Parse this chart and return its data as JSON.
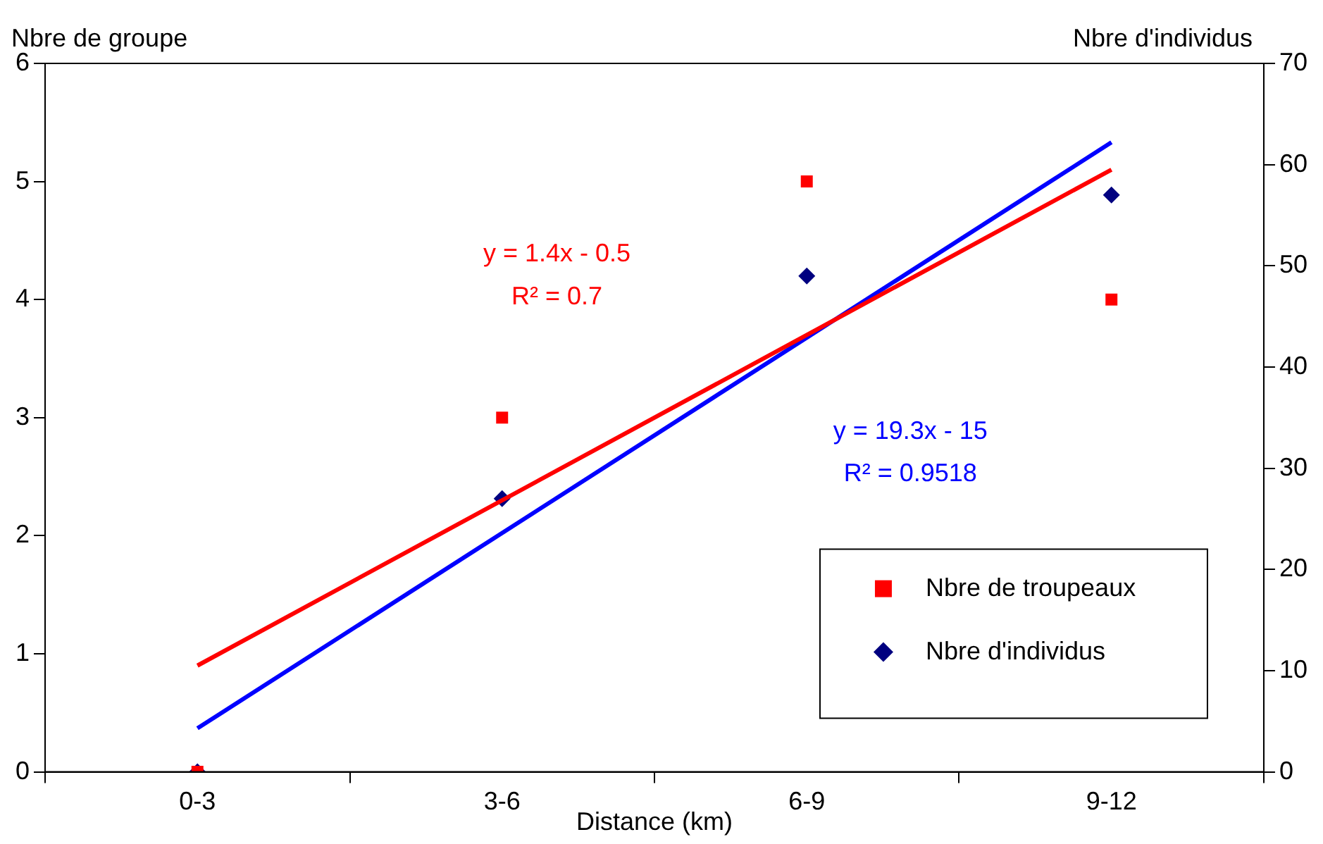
{
  "chart_data": {
    "type": "scatter",
    "xlabel": "Distance (km)",
    "ylabel": "Nbre de groupe",
    "y2label": "Nbre d'individus",
    "categories": [
      "0-3",
      "3-6",
      "6-9",
      "9-12"
    ],
    "series": [
      {
        "name": "Nbre de troupeaux",
        "marker": "square",
        "color": "#ff0000",
        "values": [
          0,
          3,
          5,
          4
        ]
      },
      {
        "name": "Nbre d'individus",
        "marker": "diamond",
        "color": "#000080",
        "axis": "y2",
        "values": [
          0,
          27,
          49,
          57
        ]
      },
      {
        "type": "line",
        "marker": "none",
        "color": "#ff0000",
        "x": [
          "0-3",
          "9-12"
        ],
        "values": [
          0.9,
          5.1
        ]
      },
      {
        "type": "line",
        "marker": "none",
        "color": "#0000ff",
        "axis": "y2",
        "x": [
          "0-3",
          "9-12"
        ],
        "values": [
          4.3,
          62.2
        ]
      }
    ],
    "ylim": [
      0,
      6
    ],
    "yticks": [
      0,
      1,
      2,
      3,
      4,
      5,
      6
    ],
    "y2lim": [
      0,
      70
    ],
    "y2ticks": [
      0,
      10,
      20,
      30,
      40,
      50,
      60,
      70
    ],
    "annotations": [
      "y = 1.4x - 0.5",
      "R² = 0.7",
      "y = 19.3x - 15",
      "R² = 0.9518"
    ],
    "grid": false,
    "legend": "bottom right"
  }
}
